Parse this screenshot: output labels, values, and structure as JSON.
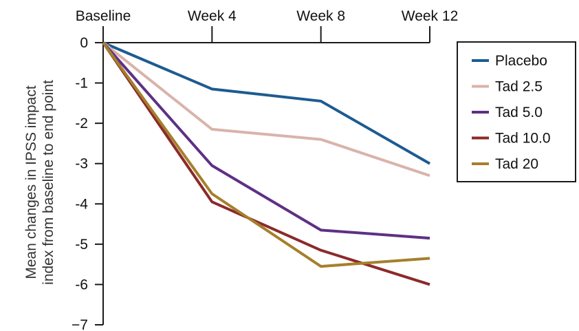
{
  "chart_data": {
    "type": "line",
    "categories": [
      "Baseline",
      "Week 4",
      "Week 8",
      "Week 12"
    ],
    "ylabel": [
      "Mean changes in IPSS impact",
      "index from baseline to end point"
    ],
    "ylim": [
      -7,
      0
    ],
    "yticks": [
      0,
      -1,
      -2,
      -3,
      -4,
      -5,
      -6,
      -7
    ],
    "ytick_labels": [
      "0",
      "-1",
      "-2",
      "-3",
      "-4",
      "-5",
      "-6",
      "−7"
    ],
    "grid": false,
    "legend_position": "right",
    "series": [
      {
        "name": "Placebo",
        "color": "#1d5b91",
        "values": [
          0,
          -1.15,
          -1.45,
          -3.0
        ]
      },
      {
        "name": "Tad 2.5",
        "color": "#d9b3ab",
        "values": [
          0,
          -2.15,
          -2.4,
          -3.3
        ]
      },
      {
        "name": "Tad 5.0",
        "color": "#5e3085",
        "values": [
          0,
          -3.05,
          -4.65,
          -4.85
        ]
      },
      {
        "name": "Tad 10.0",
        "color": "#8c2a2a",
        "values": [
          0,
          -3.95,
          -5.15,
          -6.0
        ]
      },
      {
        "name": "Tad 20",
        "color": "#a67f2c",
        "values": [
          0,
          -3.75,
          -5.55,
          -5.35
        ]
      }
    ]
  }
}
